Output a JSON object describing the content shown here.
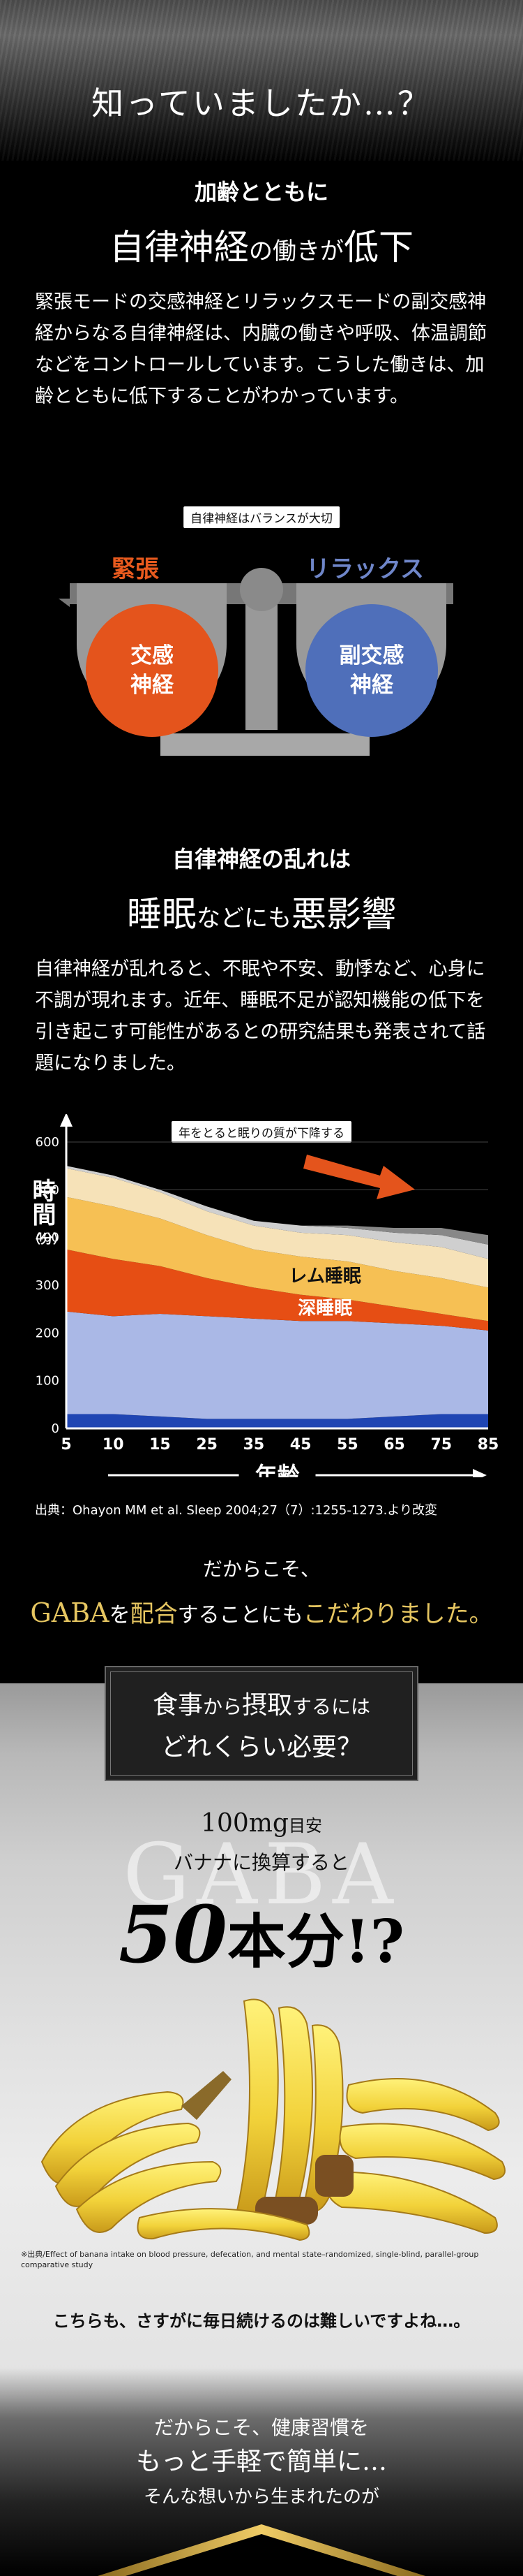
{
  "header": {
    "title": "知っていましたか…？"
  },
  "section1": {
    "subtitle": "加齢とともに",
    "headline_a": "自律神経",
    "headline_b": "の",
    "headline_c": "働きが",
    "headline_d": "低下",
    "body": "緊張モードの交感神経とリラックスモードの副交感神経からなる自律神経は、内臓の働きや呼吸、体温調節などをコントロールしています。こうした働きは、加齢とともに低下することがわかっています。"
  },
  "balance": {
    "caption": "自律神経はバランスが大切",
    "left_label": "緊張",
    "right_label": "リラックス",
    "left_ball": "交感\n神経",
    "right_ball": "副交感\n神経",
    "colors": {
      "orange": "#e4541c",
      "blue": "#4f6fba"
    }
  },
  "section2": {
    "subtitle": "自律神経の乱れは",
    "headline_a": "睡眠",
    "headline_b": "などにも",
    "headline_c": "悪影響",
    "body": "自律神経が乱れると、不眠や不安、動悸など、心身に不調が現れます。近年、睡眠不足が認知機能の低下を引き起こす可能性があるとの研究結果も発表されて話題になりました。"
  },
  "chart_caption": "年をとると眠りの質が下降する",
  "chart_data": {
    "type": "area",
    "xlabel": "年齢",
    "ylabel": "時間",
    "ylabel_unit": "分",
    "x": [
      5,
      10,
      15,
      25,
      35,
      45,
      55,
      65,
      75,
      85
    ],
    "ylim": [
      0,
      600
    ],
    "yticks": [
      0,
      100,
      200,
      300,
      400,
      500,
      600
    ],
    "series": [
      {
        "name": "",
        "color": "#1f45b3",
        "values": [
          30,
          30,
          25,
          20,
          20,
          20,
          20,
          25,
          30,
          30
        ]
      },
      {
        "name": "",
        "color": "#aab8e6",
        "values": [
          215,
          205,
          215,
          215,
          210,
          205,
          205,
          195,
          185,
          175
        ]
      },
      {
        "name": "深睡眠",
        "color": "#e64e14",
        "values": [
          130,
          120,
          100,
          80,
          65,
          55,
          45,
          35,
          25,
          20
        ]
      },
      {
        "name": "レム睡眠",
        "color": "#f6c054",
        "values": [
          110,
          110,
          100,
          90,
          80,
          80,
          80,
          75,
          75,
          70
        ]
      },
      {
        "name": "",
        "color": "#f6e2b8",
        "values": [
          60,
          60,
          55,
          50,
          50,
          50,
          55,
          60,
          65,
          60
        ]
      },
      {
        "name": "",
        "color": "#cfcfcf",
        "values": [
          5,
          5,
          5,
          10,
          10,
          15,
          15,
          20,
          25,
          30
        ]
      },
      {
        "name": "",
        "color": "#888888",
        "values": [
          0,
          0,
          0,
          0,
          0,
          0,
          5,
          10,
          15,
          20
        ]
      }
    ]
  },
  "chart_source": "出典：Ohayon MM et al. Sleep 2004;27（7）:1255-1273.より改変",
  "lead": {
    "line1": "だからこそ、",
    "gaba": "GABA",
    "wo": "を",
    "haigo": "配合",
    "mid": "することにも",
    "kodawari": "こだわりました。"
  },
  "intake": {
    "box_line1_a": "食事",
    "box_line1_b": "から",
    "box_line1_c": "摂取",
    "box_line1_d": "するには",
    "box_line2": "どれくらい必要？",
    "watermark": "GABA",
    "dose_amount": "100mg",
    "dose_suffix": "目安",
    "banana_line": "バナナに換算すると",
    "count_num": "50",
    "count_text": "本分!?",
    "fineprint": "※出典/Effect of banana intake on blood pressure, defecation, and mental state–randomized, single-blind, parallel-group comparative study",
    "hard_line": "こちらも、さすがに毎日続けるのは難しいですよね…。"
  },
  "closing": {
    "line1": "だからこそ、健康習慣を",
    "line2": "もっと手軽で簡単に…",
    "line3": "そんな想いから生まれたのが"
  }
}
